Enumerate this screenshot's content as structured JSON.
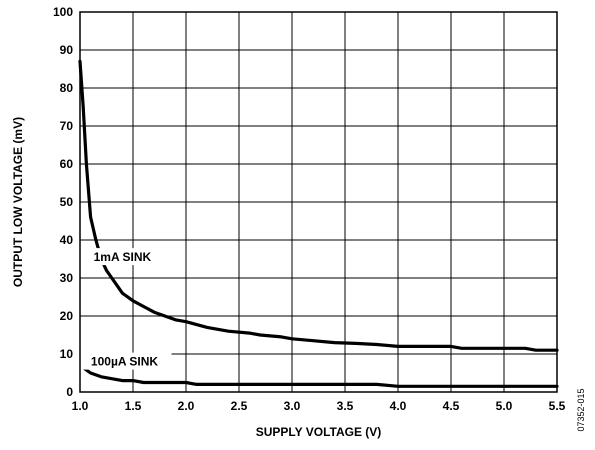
{
  "chart_data": {
    "type": "line",
    "xlabel": "SUPPLY VOLTAGE (V)",
    "ylabel": "OUTPUT LOW VOLTAGE (mV)",
    "xlim": [
      1.0,
      5.5
    ],
    "ylim": [
      0,
      100
    ],
    "xticks": [
      "1.0",
      "1.5",
      "2.0",
      "2.5",
      "3.0",
      "3.5",
      "4.0",
      "4.5",
      "5.0",
      "5.5"
    ],
    "yticks": [
      "0",
      "10",
      "20",
      "30",
      "40",
      "50",
      "60",
      "70",
      "80",
      "90",
      "100"
    ],
    "grid": true,
    "figure_id": "07352-015",
    "series": [
      {
        "name": "1mA SINK",
        "color": "#000000",
        "x": [
          1.0,
          1.03,
          1.06,
          1.1,
          1.15,
          1.2,
          1.25,
          1.3,
          1.35,
          1.4,
          1.5,
          1.6,
          1.7,
          1.8,
          1.9,
          2.0,
          2.2,
          2.4,
          2.6,
          2.7,
          2.9,
          3.0,
          3.2,
          3.4,
          3.6,
          3.8,
          4.0,
          4.2,
          4.5,
          4.6,
          5.0,
          5.2,
          5.3,
          5.5
        ],
        "values": [
          87,
          75,
          60,
          46,
          40,
          35,
          32,
          30,
          28,
          26,
          24,
          22.5,
          21,
          20,
          19,
          18.5,
          17,
          16,
          15.5,
          15,
          14.5,
          14,
          13.5,
          13,
          12.8,
          12.5,
          12,
          12,
          12,
          11.5,
          11.5,
          11.5,
          11,
          11
        ]
      },
      {
        "name": "100µA SINK",
        "color": "#000000",
        "x": [
          1.0,
          1.1,
          1.2,
          1.3,
          1.4,
          1.5,
          1.6,
          1.7,
          1.9,
          2.0,
          2.1,
          2.5,
          3.0,
          3.5,
          3.8,
          4.0,
          4.5,
          5.0,
          5.5
        ],
        "values": [
          7,
          5,
          4,
          3.5,
          3,
          3,
          2.5,
          2.5,
          2.5,
          2.5,
          2,
          2,
          2,
          2,
          2,
          1.5,
          1.5,
          1.5,
          1.5
        ]
      }
    ]
  }
}
